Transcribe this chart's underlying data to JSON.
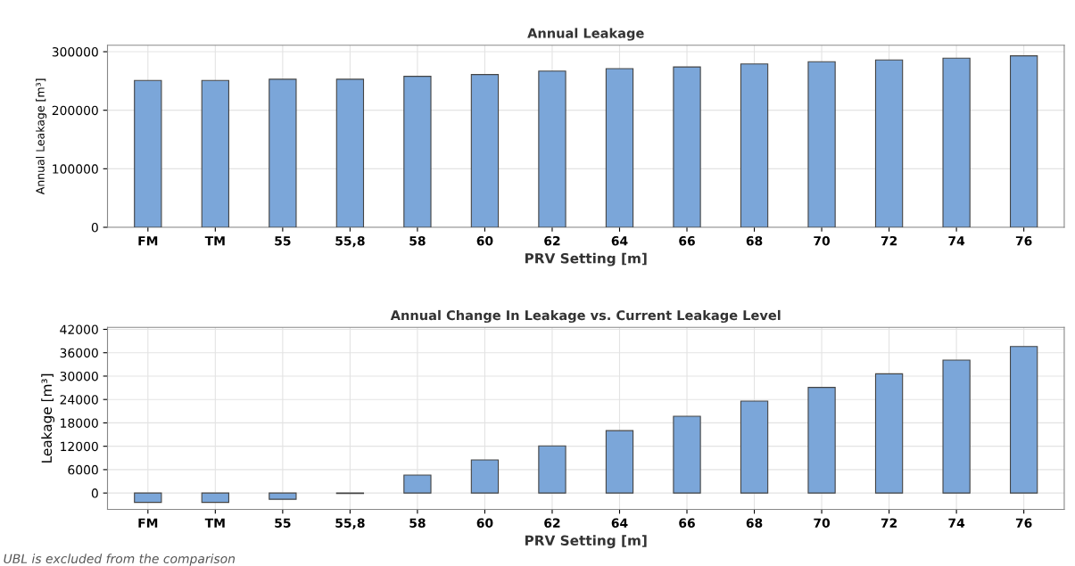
{
  "chart_data": [
    {
      "type": "bar",
      "title": "Annual Leakage",
      "xlabel": "PRV Setting [m]",
      "ylabel": "Annual Leakage [m³]",
      "categories": [
        "FM",
        "TM",
        "55",
        "55,8",
        "58",
        "60",
        "62",
        "64",
        "66",
        "68",
        "70",
        "72",
        "74",
        "76"
      ],
      "values": [
        251000,
        251000,
        253000,
        253000,
        258000,
        261000,
        267000,
        271000,
        274000,
        279000,
        283000,
        286000,
        289000,
        293000
      ],
      "color": "#7ba6d9",
      "ylim": [
        0,
        311000
      ],
      "yticks": [
        0,
        100000,
        200000,
        300000
      ],
      "grid": true
    },
    {
      "type": "bar",
      "title": "Annual Change In Leakage vs. Current Leakage Level",
      "xlabel": "PRV Setting [m]",
      "ylabel": "Leakage [m³]",
      "categories": [
        "FM",
        "TM",
        "55",
        "55,8",
        "58",
        "60",
        "62",
        "64",
        "66",
        "68",
        "70",
        "72",
        "74",
        "76"
      ],
      "values": [
        -2400,
        -2400,
        -1600,
        -100,
        4600,
        8500,
        12100,
        16000,
        19700,
        23600,
        27100,
        30600,
        34100,
        37600
      ],
      "color": "#7ba6d9",
      "ylim": [
        -4200,
        42500
      ],
      "yticks": [
        0,
        6000,
        12000,
        18000,
        24000,
        30000,
        36000,
        42000
      ],
      "grid": true,
      "annotations": [
        "UBL is excluded from the comparison"
      ]
    }
  ]
}
